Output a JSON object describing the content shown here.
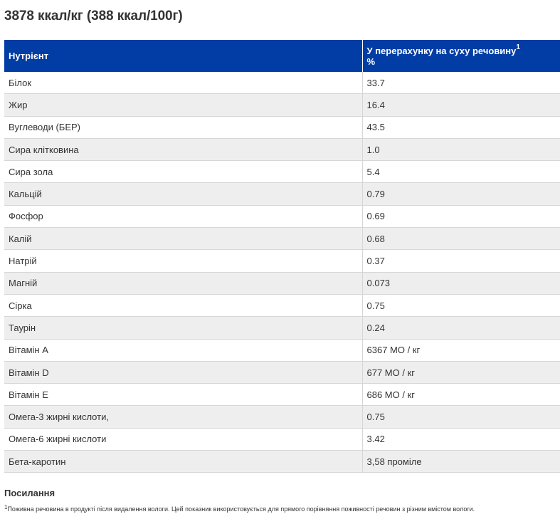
{
  "heading": "3878 ккал/кг (388 ккал/100г)",
  "table": {
    "header": {
      "nutrient": "Нутрієнт",
      "dry_matter": "У перерахунку на суху речовину",
      "dry_matter_sup": "1",
      "dry_matter_unit": "%"
    },
    "rows": [
      {
        "name": "Білок",
        "value": "33.7"
      },
      {
        "name": "Жир",
        "value": "16.4"
      },
      {
        "name": "Вуглеводи (БЕР)",
        "value": "43.5"
      },
      {
        "name": "Сира клітковина",
        "value": "1.0"
      },
      {
        "name": "Сира зола",
        "value": "5.4"
      },
      {
        "name": "Кальцій",
        "value": "0.79"
      },
      {
        "name": "Фосфор",
        "value": "0.69"
      },
      {
        "name": "Калій",
        "value": "0.68"
      },
      {
        "name": "Натрій",
        "value": "0.37"
      },
      {
        "name": "Магній",
        "value": "0.073"
      },
      {
        "name": "Сірка",
        "value": "0.75"
      },
      {
        "name": "Таурін",
        "value": "0.24"
      },
      {
        "name": "Вітамін A",
        "value": "6367 МО / кг"
      },
      {
        "name": "Вітамін D",
        "value": "677 МО / кг"
      },
      {
        "name": "Вітамін E",
        "value": "686 МО / кг"
      },
      {
        "name": "Омега-3 жирні кислоти,",
        "value": "0.75"
      },
      {
        "name": "Омега-6 жирні кислоти",
        "value": "3.42"
      },
      {
        "name": "Бета-каротин",
        "value": "3,58 проміле"
      }
    ]
  },
  "references": {
    "title": "Посилання",
    "footnote_marker": "1",
    "footnote_text": "Поживна речовина в продукті після видалення вологи. Цей показник використовується для прямого порівняння поживності речовин з різним вмістом вологи."
  },
  "colors": {
    "header_bg": "#013da4",
    "stripe_bg": "#eeeeee",
    "text": "#333333"
  }
}
